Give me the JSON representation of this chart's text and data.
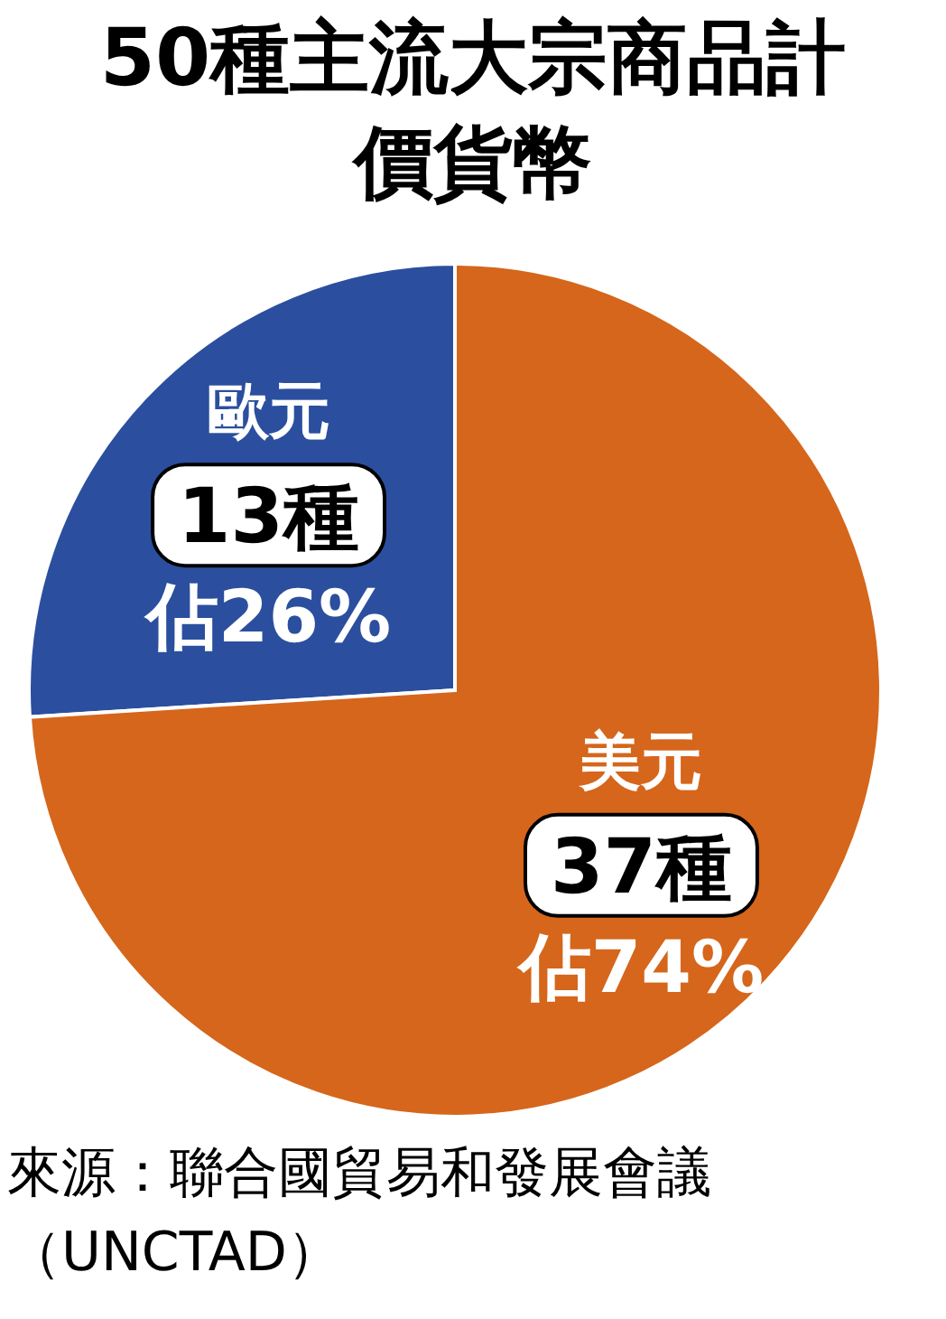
{
  "chart_data": {
    "type": "pie",
    "title": "50種主流大宗商品計價貨幣",
    "categories": [
      "歐元",
      "美元"
    ],
    "values": [
      13,
      37
    ],
    "value_labels": [
      "13種佔26%",
      "37種佔74%"
    ],
    "colors": [
      "#2b4f9e",
      "#d5661b"
    ],
    "annotations": [
      "來源：聯合國貿易和發展會議（UNCTAD）"
    ]
  }
}
